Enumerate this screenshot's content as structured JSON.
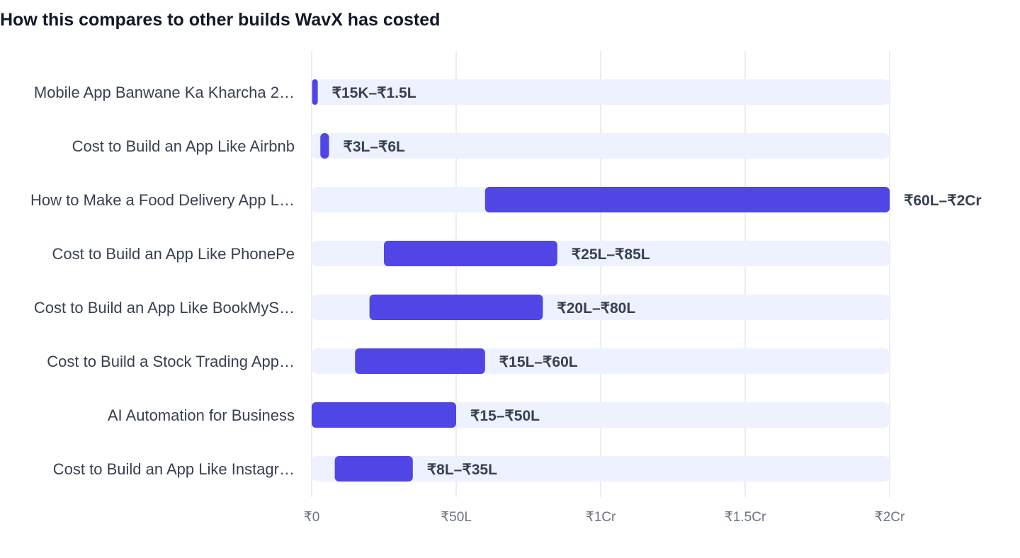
{
  "title": "How this compares to other builds WavX has costed",
  "colors": {
    "bar": "#4f46e5",
    "track": "#eef2ff",
    "grid": "#e5e7eb",
    "label": "#374151",
    "tick": "#6b7280"
  },
  "chart_data": {
    "type": "bar",
    "orientation": "horizontal",
    "style": "range",
    "title": "How this compares to other builds WavX has costed",
    "xlabel": "",
    "ylabel": "",
    "xlim": [
      0,
      20000000
    ],
    "xticks": [
      0,
      5000000,
      10000000,
      15000000,
      20000000
    ],
    "xtick_labels": [
      "₹0",
      "₹50L",
      "₹1Cr",
      "₹1.5Cr",
      "₹2Cr"
    ],
    "grid": true,
    "categories": [
      "Mobile App Banwane Ka Kharcha 2…",
      "Cost to Build an App Like Airbnb",
      "How to Make a Food Delivery App L…",
      "Cost to Build an App Like PhonePe",
      "Cost to Build an App Like BookMyS…",
      "Cost to Build a Stock Trading App…",
      "AI Automation for Business",
      "Cost to Build an App Like Instagr…"
    ],
    "ranges": [
      [
        15000,
        150000
      ],
      [
        300000,
        600000
      ],
      [
        6000000,
        20000000
      ],
      [
        2500000,
        8500000
      ],
      [
        2000000,
        8000000
      ],
      [
        1500000,
        6000000
      ],
      [
        15,
        5000000
      ],
      [
        800000,
        3500000
      ]
    ],
    "value_labels": [
      "₹15K–₹1.5L",
      "₹3L–₹6L",
      "₹60L–₹2Cr",
      "₹25L–₹85L",
      "₹20L–₹80L",
      "₹15L–₹60L",
      "₹15–₹50L",
      "₹8L–₹35L"
    ]
  }
}
